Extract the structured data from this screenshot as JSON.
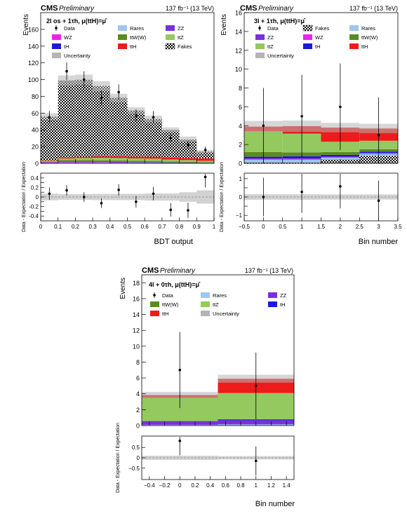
{
  "header": {
    "experiment": "CMS",
    "status": "Preliminary",
    "lumi": "137 fb⁻¹ (13 TeV)"
  },
  "colors": {
    "data": "#000000",
    "rares": "#9dc7ef",
    "zz": "#7b2fdc",
    "wz": "#ee22ee",
    "ttW": "#5b8a22",
    "ttZ": "#93c95e",
    "tH": "#1b1bd6",
    "ttH": "#ee1b1b",
    "fakes_fg": "#000000",
    "fakes_bg": "#ffffff",
    "uncertainty": "#b4b4b4"
  },
  "chart_data": [
    {
      "type": "bar",
      "stacked": true,
      "channel": "2l os + 1τh, μ(ttH)=μ̂",
      "ylabel": "Events",
      "xlabel": "BDT output",
      "ratio_ylabel": "Data - Expectation / Expectation",
      "x_edges": [
        0,
        0.1,
        0.2,
        0.3,
        0.4,
        0.5,
        0.6,
        0.7,
        0.8,
        0.9,
        1.0
      ],
      "ylim": [
        0,
        180
      ],
      "yticks": [
        0,
        20,
        40,
        60,
        80,
        100,
        120,
        140,
        160
      ],
      "xticks": [
        0,
        0.1,
        0.2,
        0.3,
        0.4,
        0.5,
        0.6,
        0.7,
        0.8,
        0.9,
        1
      ],
      "xtick_labels": [
        "0",
        "0.1",
        "0.2",
        "0.3",
        "0.4",
        "0.5",
        "0.6",
        "0.7",
        "0.8",
        "0.9",
        "1"
      ],
      "legend": [
        {
          "label": "Data",
          "key": "data",
          "kind": "marker"
        },
        {
          "label": "Rares",
          "key": "rares",
          "kind": "fill"
        },
        {
          "label": "ZZ",
          "key": "zz",
          "kind": "fill"
        },
        {
          "label": "WZ",
          "key": "wz",
          "kind": "fill"
        },
        {
          "label": "ttW(W)",
          "key": "ttW",
          "kind": "fill"
        },
        {
          "label": "ttZ",
          "key": "ttZ",
          "kind": "fill"
        },
        {
          "label": "tH",
          "key": "tH",
          "kind": "fill"
        },
        {
          "label": "ttH",
          "key": "ttH",
          "kind": "fill"
        },
        {
          "label": "Fakes",
          "key": "fakes",
          "kind": "hatch"
        },
        {
          "label": "Uncertainty",
          "key": "uncertainty",
          "kind": "fill"
        }
      ],
      "stack_order": [
        "rares",
        "zz",
        "wz",
        "tH",
        "ttW",
        "ttZ",
        "ttH",
        "fakes"
      ],
      "series": [
        {
          "key": "rares",
          "values": [
            0.5,
            0.8,
            0.8,
            0.7,
            0.6,
            0.5,
            0.5,
            0.4,
            0.3,
            0.2
          ]
        },
        {
          "key": "zz",
          "values": [
            0.3,
            0.4,
            0.4,
            0.3,
            0.3,
            0.2,
            0.2,
            0.1,
            0.1,
            0.1
          ]
        },
        {
          "key": "wz",
          "values": [
            0.4,
            0.6,
            0.6,
            0.5,
            0.4,
            0.3,
            0.3,
            0.2,
            0.2,
            0.1
          ]
        },
        {
          "key": "tH",
          "values": [
            0.3,
            0.5,
            0.5,
            0.5,
            0.5,
            0.4,
            0.4,
            0.3,
            0.3,
            0.2
          ]
        },
        {
          "key": "ttW",
          "values": [
            0.8,
            1.5,
            1.6,
            1.6,
            1.6,
            1.5,
            1.4,
            1.2,
            1.0,
            0.8
          ]
        },
        {
          "key": "ttZ",
          "values": [
            1.0,
            2.0,
            2.5,
            3.0,
            3.0,
            3.0,
            2.8,
            2.4,
            2.0,
            1.6
          ]
        },
        {
          "key": "ttH",
          "values": [
            0.5,
            1.2,
            1.5,
            1.8,
            2.0,
            2.2,
            2.4,
            2.4,
            2.5,
            3.0
          ]
        },
        {
          "key": "fakes",
          "values": [
            52,
            92,
            92,
            84,
            70,
            55,
            45,
            33,
            22,
            8
          ]
        }
      ],
      "totals": [
        56,
        99,
        100,
        92,
        78,
        63,
        53,
        40,
        29,
        14
      ],
      "uncertainty": [
        4,
        6,
        6,
        6,
        5,
        4,
        4,
        3,
        3,
        2
      ],
      "data": {
        "x": [
          0.05,
          0.15,
          0.25,
          0.35,
          0.45,
          0.55,
          0.65,
          0.75,
          0.85,
          0.95
        ],
        "y": [
          55,
          110,
          100,
          78,
          85,
          57,
          55,
          30,
          22,
          16
        ],
        "err": [
          7.5,
          10.5,
          10,
          8.8,
          9.2,
          7.5,
          7.4,
          5.5,
          4.7,
          4
        ]
      },
      "ratio": {
        "ylim": [
          -0.5,
          0.5
        ],
        "yticks": [
          -0.4,
          -0.3,
          -0.2,
          -0.1,
          0,
          0.1,
          0.2,
          0.3,
          0.4
        ],
        "ytick_labels": [
          "-0.4",
          "",
          "-0.2",
          "",
          "0",
          "",
          "0.2",
          "",
          "0.4"
        ],
        "values": [
          0.07,
          0.14,
          0.0,
          -0.13,
          0.15,
          -0.1,
          0.07,
          -0.27,
          -0.28,
          0.42
        ],
        "err": [
          0.13,
          0.11,
          0.1,
          0.1,
          0.12,
          0.12,
          0.14,
          0.14,
          0.16,
          0.22
        ],
        "band": [
          0.07,
          0.06,
          0.06,
          0.065,
          0.065,
          0.065,
          0.075,
          0.075,
          0.1,
          0.14
        ]
      }
    },
    {
      "type": "bar",
      "stacked": true,
      "channel": "3l + 1τh, μ(ttH)=μ̂",
      "ylabel": "Events",
      "xlabel": "Bin number",
      "ratio_ylabel": "Data - Expectation / Expectation",
      "x_edges": [
        -0.5,
        0.5,
        1.5,
        2.5,
        3.5
      ],
      "ylim": [
        0,
        16
      ],
      "yticks": [
        0,
        2,
        4,
        6,
        8,
        10,
        12,
        14,
        16
      ],
      "xticks": [
        -0.5,
        0,
        0.5,
        1,
        1.5,
        2,
        2.5,
        3,
        3.5
      ],
      "xtick_labels": [
        "−0.5",
        "0",
        "0.5",
        "1",
        "1.5",
        "2",
        "2.5",
        "3",
        "3.5"
      ],
      "legend": [
        {
          "label": "Data",
          "key": "data",
          "kind": "marker"
        },
        {
          "label": "Fakes",
          "key": "fakes",
          "kind": "hatch"
        },
        {
          "label": "Rares",
          "key": "rares",
          "kind": "fill"
        },
        {
          "label": "ZZ",
          "key": "zz",
          "kind": "fill"
        },
        {
          "label": "WZ",
          "key": "wz",
          "kind": "fill"
        },
        {
          "label": "ttW(W)",
          "key": "ttW",
          "kind": "fill"
        },
        {
          "label": "ttZ",
          "key": "ttZ",
          "kind": "fill"
        },
        {
          "label": "tH",
          "key": "tH",
          "kind": "fill"
        },
        {
          "label": "ttH",
          "key": "ttH",
          "kind": "fill"
        },
        {
          "label": "Uncertainty",
          "key": "uncertainty",
          "kind": "fill"
        }
      ],
      "stack_order": [
        "fakes",
        "rares",
        "zz",
        "wz",
        "tH",
        "ttW",
        "ttZ",
        "ttH"
      ],
      "series": [
        {
          "key": "fakes",
          "values": [
            0.1,
            0.1,
            0.4,
            0.8
          ]
        },
        {
          "key": "rares",
          "values": [
            0.3,
            0.3,
            0.2,
            0.2
          ]
        },
        {
          "key": "zz",
          "values": [
            0.05,
            0.05,
            0.05,
            0.05
          ]
        },
        {
          "key": "wz",
          "values": [
            0.05,
            0.05,
            0.05,
            0.05
          ]
        },
        {
          "key": "tH",
          "values": [
            0.2,
            0.25,
            0.2,
            0.15
          ]
        },
        {
          "key": "ttW",
          "values": [
            0.5,
            0.4,
            0.3,
            0.25
          ]
        },
        {
          "key": "ttZ",
          "values": [
            2.2,
            2.0,
            1.1,
            0.9
          ]
        },
        {
          "key": "ttH",
          "values": [
            0.5,
            0.8,
            1.5,
            1.3
          ]
        }
      ],
      "totals": [
        3.9,
        3.95,
        3.8,
        3.7
      ],
      "uncertainty": [
        0.6,
        0.6,
        0.5,
        0.5
      ],
      "data": {
        "x": [
          0,
          1,
          2,
          3
        ],
        "y": [
          4,
          5,
          6,
          3
        ],
        "err": [
          4,
          4.4,
          4.6,
          4
        ]
      },
      "ratio": {
        "ylim": [
          -1.3,
          1.3
        ],
        "yticks": [
          -1,
          -0.5,
          0,
          0.5,
          1
        ],
        "ytick_labels": [
          "−1",
          "",
          "0",
          "",
          "1"
        ],
        "values": [
          0.0,
          0.28,
          0.58,
          -0.2
        ],
        "err": [
          1.05,
          1.15,
          1.2,
          1.1
        ],
        "band": [
          0.15,
          0.15,
          0.14,
          0.14
        ]
      }
    },
    {
      "type": "bar",
      "stacked": true,
      "channel": "4l + 0τh, μ(ttH)=μ̂",
      "ylabel": "Events",
      "xlabel": "Bin number",
      "ratio_ylabel": "Data - Expectation / Expectation",
      "x_edges": [
        -0.5,
        0.5,
        1.5
      ],
      "ylim": [
        0,
        19
      ],
      "yticks": [
        0,
        2,
        4,
        6,
        8,
        10,
        12,
        14,
        16,
        18
      ],
      "xticks": [
        -0.4,
        -0.2,
        0,
        0.2,
        0.4,
        0.6,
        0.8,
        1,
        1.2,
        1.4
      ],
      "xtick_labels": [
        "−0.4",
        "−0.2",
        "0",
        "0.2",
        "0.4",
        "0.6",
        "0.8",
        "1",
        "1.2",
        "1.4"
      ],
      "legend": [
        {
          "label": "Data",
          "key": "data",
          "kind": "marker"
        },
        {
          "label": "Rares",
          "key": "rares",
          "kind": "fill"
        },
        {
          "label": "ZZ",
          "key": "zz",
          "kind": "fill"
        },
        {
          "label": "ttW(W)",
          "key": "ttW",
          "kind": "fill"
        },
        {
          "label": "ttZ",
          "key": "ttZ",
          "kind": "fill"
        },
        {
          "label": "tH",
          "key": "tH",
          "kind": "fill"
        },
        {
          "label": "ttH",
          "key": "ttH",
          "kind": "fill"
        },
        {
          "label": "Uncertainty",
          "key": "uncertainty",
          "kind": "fill"
        }
      ],
      "stack_order": [
        "rares",
        "zz",
        "tH",
        "ttW",
        "ttZ",
        "ttH"
      ],
      "series": [
        {
          "key": "rares",
          "values": [
            0.1,
            0.15
          ]
        },
        {
          "key": "zz",
          "values": [
            0.4,
            0.5
          ]
        },
        {
          "key": "tH",
          "values": [
            0.05,
            0.1
          ]
        },
        {
          "key": "ttW",
          "values": [
            0.05,
            0.05
          ]
        },
        {
          "key": "ttZ",
          "values": [
            2.9,
            3.3
          ]
        },
        {
          "key": "ttH",
          "values": [
            0.35,
            1.8
          ]
        }
      ],
      "totals": [
        3.85,
        5.9
      ],
      "uncertainty": [
        0.4,
        0.5
      ],
      "data": {
        "x": [
          0,
          1
        ],
        "y": [
          7,
          5
        ],
        "err": [
          4.8,
          4.2
        ]
      },
      "ratio": {
        "ylim": [
          -1.05,
          1.05
        ],
        "yticks": [
          -0.5,
          0,
          0.5
        ],
        "ytick_labels": [
          "−0.5",
          "0",
          "0.5"
        ],
        "values": [
          0.82,
          -0.15
        ],
        "err": [
          0.7,
          0.7
        ],
        "band": [
          0.1,
          0.08
        ]
      }
    }
  ]
}
